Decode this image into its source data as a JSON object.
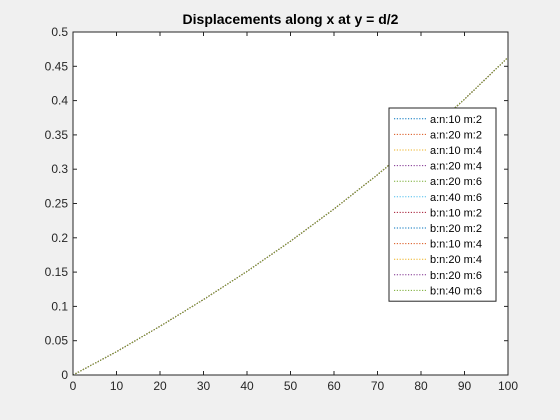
{
  "chart_data": {
    "type": "line",
    "title": "Displacements along x at y = d/2",
    "xlabel": "",
    "ylabel": "",
    "xlim": [
      0,
      100
    ],
    "ylim": [
      0,
      0.5
    ],
    "x_ticks": [
      0,
      10,
      20,
      30,
      40,
      50,
      60,
      70,
      80,
      90,
      100
    ],
    "y_ticks": [
      0,
      0.05,
      0.1,
      0.15,
      0.2,
      0.25,
      0.3,
      0.35,
      0.4,
      0.45,
      0.5
    ],
    "x_tick_labels": [
      "0",
      "10",
      "20",
      "30",
      "40",
      "50",
      "60",
      "70",
      "80",
      "90",
      "100"
    ],
    "y_tick_labels": [
      "0",
      "0.05",
      "0.1",
      "0.15",
      "0.2",
      "0.25",
      "0.3",
      "0.35",
      "0.4",
      "0.45",
      "0.5"
    ],
    "grid": false,
    "legend_position": "right",
    "x": [
      0,
      10,
      20,
      30,
      40,
      50,
      60,
      70,
      80,
      90,
      100
    ],
    "series": [
      {
        "name": "a:n:10 m:2",
        "color": "#0072bd",
        "values": [
          0,
          0.034,
          0.071,
          0.11,
          0.151,
          0.195,
          0.242,
          0.292,
          0.345,
          0.402,
          0.463
        ]
      },
      {
        "name": "a:n:20 m:2",
        "color": "#d95319",
        "values": [
          0,
          0.034,
          0.071,
          0.11,
          0.151,
          0.195,
          0.242,
          0.292,
          0.345,
          0.402,
          0.463
        ]
      },
      {
        "name": "a:n:10 m:4",
        "color": "#edb120",
        "values": [
          0,
          0.034,
          0.071,
          0.11,
          0.151,
          0.195,
          0.242,
          0.292,
          0.345,
          0.402,
          0.463
        ]
      },
      {
        "name": "a:n:20 m:4",
        "color": "#7e2f8e",
        "values": [
          0,
          0.034,
          0.071,
          0.11,
          0.151,
          0.195,
          0.242,
          0.292,
          0.345,
          0.402,
          0.463
        ]
      },
      {
        "name": "a:n:20 m:6",
        "color": "#77ac30",
        "values": [
          0,
          0.034,
          0.071,
          0.11,
          0.151,
          0.195,
          0.242,
          0.292,
          0.345,
          0.402,
          0.463
        ]
      },
      {
        "name": "a:n:40 m:6",
        "color": "#4dbeee",
        "values": [
          0,
          0.034,
          0.071,
          0.11,
          0.151,
          0.195,
          0.242,
          0.292,
          0.345,
          0.402,
          0.463
        ]
      },
      {
        "name": "b:n:10 m:2",
        "color": "#a2142f",
        "values": [
          0,
          0.034,
          0.071,
          0.11,
          0.151,
          0.195,
          0.242,
          0.292,
          0.345,
          0.402,
          0.463
        ]
      },
      {
        "name": "b:n:20 m:2",
        "color": "#0072bd",
        "values": [
          0,
          0.034,
          0.071,
          0.11,
          0.151,
          0.195,
          0.242,
          0.292,
          0.345,
          0.402,
          0.463
        ]
      },
      {
        "name": "b:n:10 m:4",
        "color": "#d95319",
        "values": [
          0,
          0.034,
          0.071,
          0.11,
          0.151,
          0.195,
          0.242,
          0.292,
          0.345,
          0.402,
          0.463
        ]
      },
      {
        "name": "b:n:20 m:4",
        "color": "#edb120",
        "values": [
          0,
          0.034,
          0.071,
          0.11,
          0.151,
          0.195,
          0.242,
          0.292,
          0.345,
          0.402,
          0.463
        ]
      },
      {
        "name": "b:n:20 m:6",
        "color": "#7e2f8e",
        "values": [
          0,
          0.034,
          0.071,
          0.11,
          0.151,
          0.195,
          0.242,
          0.292,
          0.345,
          0.402,
          0.463
        ]
      },
      {
        "name": "b:n:40 m:6",
        "color": "#77ac30",
        "values": [
          0,
          0.034,
          0.071,
          0.11,
          0.151,
          0.195,
          0.242,
          0.292,
          0.345,
          0.402,
          0.463
        ]
      }
    ]
  }
}
